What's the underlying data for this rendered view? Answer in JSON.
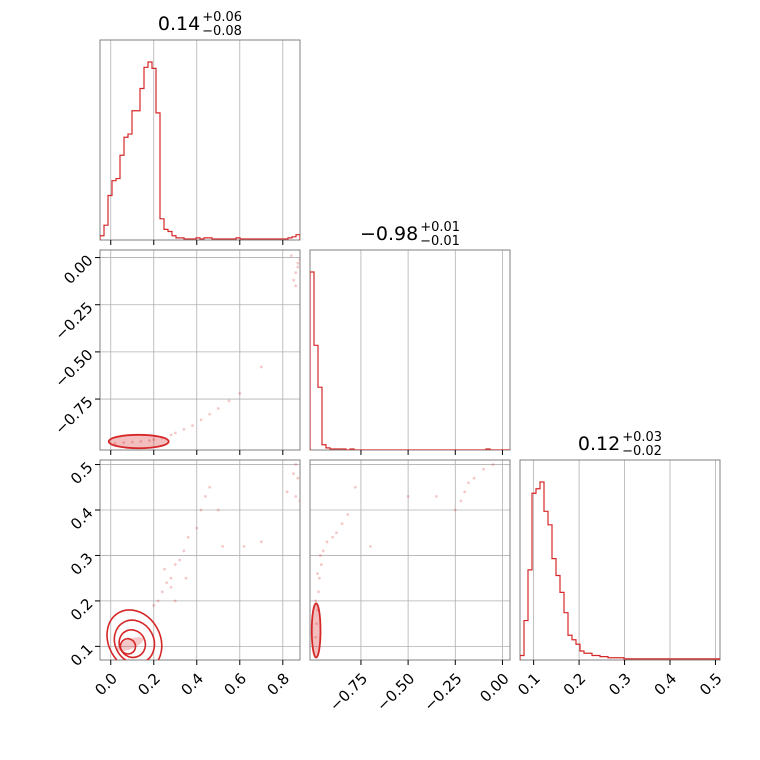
{
  "chart_data": {
    "type": "corner",
    "parameters": [
      {
        "median": "0.14",
        "plus": "+0.06",
        "minus": "−0.08",
        "range": [
          -0.05,
          0.88
        ]
      },
      {
        "median": "−0.98",
        "plus": "+0.01",
        "minus": "−0.01",
        "range": [
          -1.02,
          0.04
        ]
      },
      {
        "median": "0.12",
        "plus": "+0.03",
        "minus": "−0.02",
        "range": [
          0.07,
          0.51
        ]
      }
    ],
    "ticks": {
      "p1": {
        "values": [
          0.0,
          0.2,
          0.4,
          0.6,
          0.8
        ],
        "labels": [
          "0.0",
          "0.2",
          "0.4",
          "0.6",
          "0.8"
        ]
      },
      "p2": {
        "values": [
          -0.75,
          -0.5,
          -0.25,
          0.0
        ],
        "labels": [
          "−0.75",
          "−0.50",
          "−0.25",
          "0.00"
        ]
      },
      "p3": {
        "values": [
          0.1,
          0.2,
          0.3,
          0.4,
          0.5
        ],
        "labels": [
          "0.1",
          "0.2",
          "0.3",
          "0.4",
          "0.5"
        ]
      }
    },
    "histograms": [
      {
        "param": 1,
        "bin_start": -0.05,
        "bin_width": 0.0186,
        "counts": [
          4,
          14,
          42,
          56,
          58,
          80,
          97,
          100,
          122,
          122,
          143,
          163,
          168,
          162,
          120,
          20,
          10,
          8,
          4,
          2,
          2,
          1,
          1,
          1,
          2,
          1,
          2,
          2,
          1,
          1,
          1,
          1,
          1,
          1,
          2,
          1,
          1,
          1,
          1,
          1,
          1,
          1,
          1,
          1,
          1,
          1,
          1,
          2,
          3,
          5
        ]
      },
      {
        "param": 2,
        "bin_start": -1.02,
        "bin_width": 0.0212,
        "counts": [
          170,
          100,
          60,
          5,
          2,
          1,
          1,
          1,
          1,
          0,
          1,
          0,
          0,
          0,
          0,
          0,
          0,
          0,
          0,
          0,
          0,
          0,
          0,
          0,
          0,
          0,
          0,
          0,
          0,
          0,
          0,
          0,
          0,
          0,
          0,
          0,
          0,
          0,
          0,
          0,
          0,
          0,
          0,
          0,
          1,
          0,
          0,
          0,
          0,
          0
        ]
      },
      {
        "param": 3,
        "bin_start": 0.07,
        "bin_width": 0.0088,
        "counts": [
          4,
          35,
          80,
          148,
          152,
          158,
          132,
          120,
          90,
          75,
          60,
          42,
          22,
          18,
          14,
          8,
          6,
          6,
          4,
          4,
          3,
          3,
          2,
          2,
          2,
          2,
          1,
          1,
          1,
          1,
          1,
          1,
          1,
          1,
          1,
          1,
          1,
          1,
          1,
          1,
          1,
          1,
          1,
          1,
          1,
          1,
          1,
          1,
          1,
          1
        ]
      }
    ],
    "scatter": [
      {
        "x_param": 1,
        "y_param": 2,
        "points": [
          [
            0.02,
            -0.985
          ],
          [
            0.06,
            -0.98
          ],
          [
            0.1,
            -0.978
          ],
          [
            0.14,
            -0.975
          ],
          [
            0.18,
            -0.97
          ],
          [
            0.2,
            -0.965
          ],
          [
            0.24,
            -0.955
          ],
          [
            0.28,
            -0.94
          ],
          [
            0.3,
            -0.93
          ],
          [
            0.34,
            -0.91
          ],
          [
            0.38,
            -0.89
          ],
          [
            0.42,
            -0.86
          ],
          [
            0.46,
            -0.83
          ],
          [
            0.5,
            -0.8
          ],
          [
            0.55,
            -0.76
          ],
          [
            0.6,
            -0.72
          ],
          [
            0.7,
            -0.58
          ],
          [
            0.85,
            -0.12
          ],
          [
            0.86,
            -0.08
          ],
          [
            0.87,
            -0.05
          ],
          [
            0.87,
            -0.03
          ],
          [
            0.88,
            -0.01
          ],
          [
            0.86,
            -0.15
          ],
          [
            0.84,
            0.01
          ]
        ],
        "contour_x": [
          0.0,
          0.26
        ],
        "contour_y": [
          -1.0,
          -0.95
        ]
      },
      {
        "x_param": 1,
        "y_param": 3,
        "points": [
          [
            0.2,
            0.19
          ],
          [
            0.22,
            0.2
          ],
          [
            0.24,
            0.22
          ],
          [
            0.26,
            0.24
          ],
          [
            0.28,
            0.25
          ],
          [
            0.3,
            0.28
          ],
          [
            0.32,
            0.29
          ],
          [
            0.34,
            0.31
          ],
          [
            0.36,
            0.34
          ],
          [
            0.4,
            0.36
          ],
          [
            0.42,
            0.4
          ],
          [
            0.44,
            0.43
          ],
          [
            0.46,
            0.45
          ],
          [
            0.5,
            0.4
          ],
          [
            0.52,
            0.32
          ],
          [
            0.62,
            0.32
          ],
          [
            0.7,
            0.33
          ],
          [
            0.82,
            0.44
          ],
          [
            0.85,
            0.48
          ],
          [
            0.86,
            0.43
          ],
          [
            0.87,
            0.47
          ],
          [
            0.88,
            0.42
          ],
          [
            0.86,
            0.5
          ],
          [
            0.3,
            0.2
          ],
          [
            0.28,
            0.23
          ],
          [
            0.25,
            0.27
          ],
          [
            0.35,
            0.25
          ]
        ],
        "contours": [
          {
            "cx": 0.11,
            "cy": 0.113,
            "rx": 0.12,
            "ry": 0.05,
            "tilt": 0.47
          },
          {
            "cx": 0.11,
            "cy": 0.11,
            "rx": 0.09,
            "ry": 0.035,
            "tilt": 0.45
          },
          {
            "cx": 0.1,
            "cy": 0.106,
            "rx": 0.06,
            "ry": 0.022,
            "tilt": 0.42
          },
          {
            "cx": 0.08,
            "cy": 0.1,
            "rx": 0.035,
            "ry": 0.012,
            "tilt": 0.4
          }
        ]
      },
      {
        "x_param": 2,
        "y_param": 3,
        "points": [
          [
            -0.99,
            0.12
          ],
          [
            -0.985,
            0.15
          ],
          [
            -0.98,
            0.18
          ],
          [
            -0.975,
            0.22
          ],
          [
            -0.97,
            0.25
          ],
          [
            -0.96,
            0.28
          ],
          [
            -0.95,
            0.31
          ],
          [
            -0.93,
            0.33
          ],
          [
            -0.9,
            0.34
          ],
          [
            -0.88,
            0.35
          ],
          [
            -0.85,
            0.37
          ],
          [
            -0.82,
            0.39
          ],
          [
            -0.78,
            0.45
          ],
          [
            -0.7,
            0.32
          ],
          [
            -0.5,
            0.43
          ],
          [
            -0.35,
            0.43
          ],
          [
            -0.25,
            0.4
          ],
          [
            -0.22,
            0.42
          ],
          [
            -0.2,
            0.44
          ],
          [
            -0.18,
            0.46
          ],
          [
            -0.15,
            0.47
          ],
          [
            -0.1,
            0.49
          ],
          [
            -0.05,
            0.5
          ],
          [
            -0.99,
            0.2
          ],
          [
            -0.98,
            0.26
          ],
          [
            -0.965,
            0.3
          ]
        ],
        "contour_x": [
          -1.0,
          -0.975
        ],
        "contour_y": [
          0.08,
          0.19
        ]
      }
    ],
    "color": "#d62728",
    "grid": true
  }
}
